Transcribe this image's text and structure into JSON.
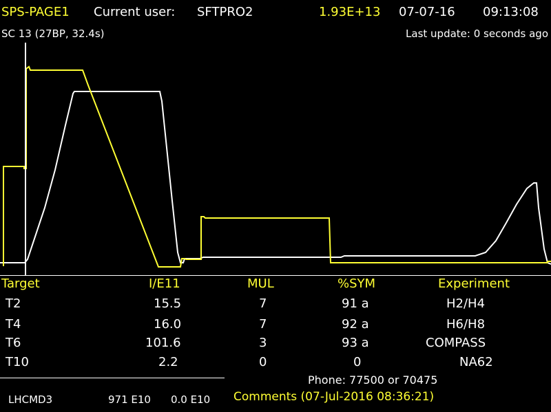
{
  "header": {
    "page": "SPS-PAGE1",
    "user_label": "Current user:",
    "user": "SFTPRO2",
    "intensity": "1.93E+13",
    "date": "07-07-16",
    "time": "09:13:08"
  },
  "subheader": {
    "cycle": "SC 13 (27BP, 32.4s)",
    "last_update": "Last update: 0 seconds ago"
  },
  "colors": {
    "background": "#000000",
    "yellow": "#ffff33",
    "white": "#ffffff"
  },
  "table": {
    "headers": [
      "Target",
      "I/E11",
      "MUL",
      "%SYM",
      "Experiment"
    ],
    "rows": [
      [
        "T2",
        "15.5",
        "7",
        "91 a",
        "H2/H4"
      ],
      [
        "T4",
        "16.0",
        "7",
        "92 a",
        "H6/H8"
      ],
      [
        "T6",
        "101.6",
        "3",
        "93 a",
        "COMPASS"
      ],
      [
        "T10",
        "2.2",
        "0",
        "0",
        "NA62"
      ]
    ]
  },
  "footer": {
    "phone": "Phone: 77500 or 70475",
    "lhc": "LHCMD3",
    "lhc_val1": "971 E10",
    "lhc_val2": "0.0 E10",
    "comments": "Comments (07-Jul-2016 08:36:21)"
  }
}
